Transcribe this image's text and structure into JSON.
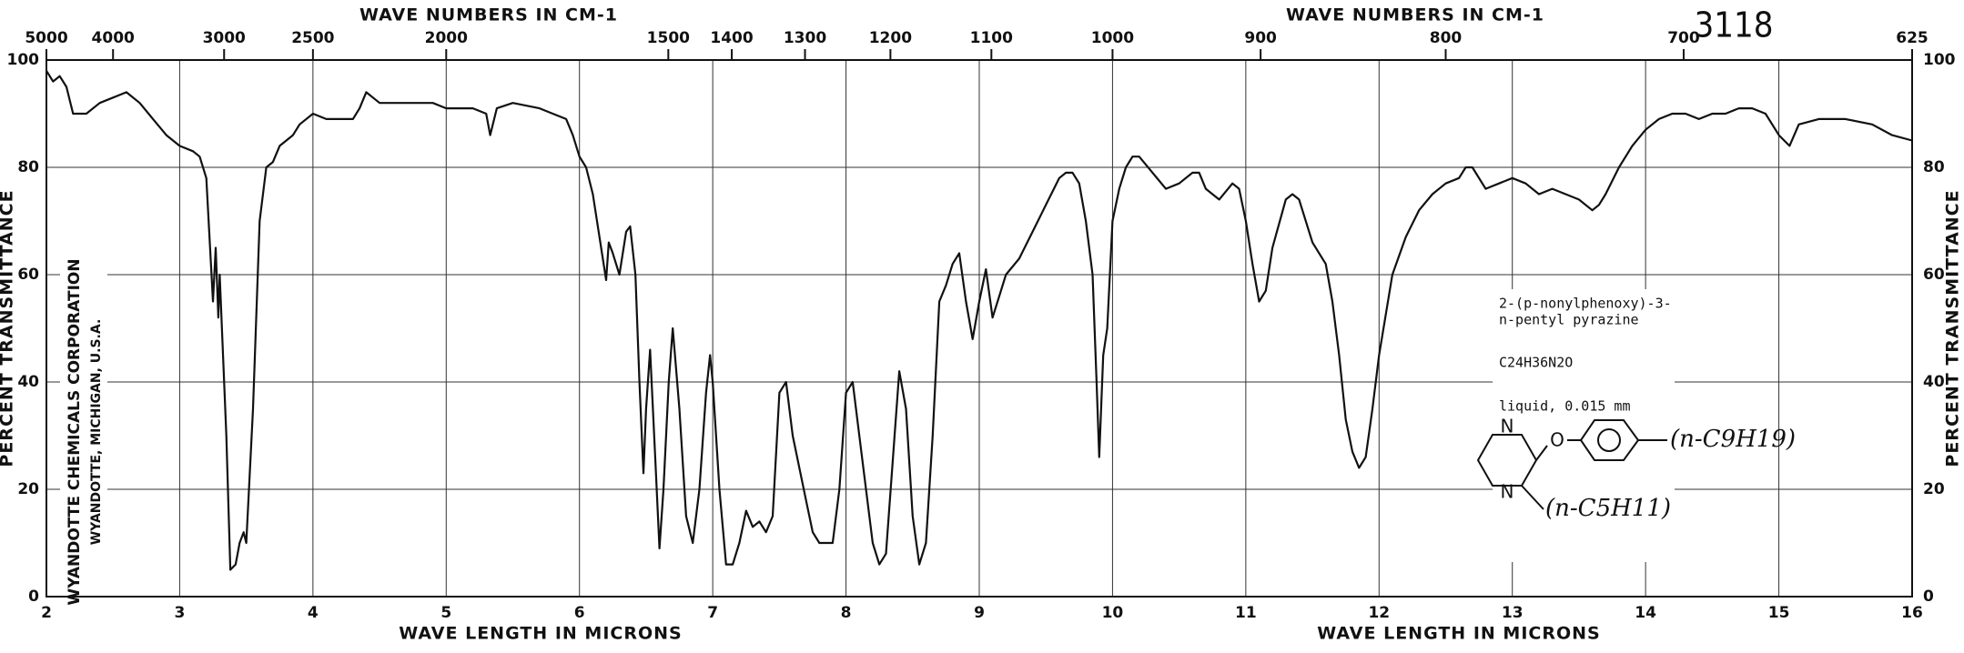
{
  "chart_data": {
    "type": "line",
    "title": "3118",
    "x_label": "WAVE LENGTH IN MICRONS",
    "x2_label": "WAVE NUMBERS IN CM-1",
    "y_label": "PERCENT TRANSMITTANCE",
    "color": "#111111",
    "grid": true,
    "xlim": [
      2,
      16
    ],
    "xticks": [
      2,
      3,
      4,
      5,
      6,
      7,
      8,
      9,
      10,
      11,
      12,
      13,
      14,
      15,
      16
    ],
    "x2ticks": [
      5000,
      4000,
      3000,
      2500,
      2000,
      1500,
      1400,
      1300,
      1200,
      1100,
      1000,
      900,
      800,
      700,
      625
    ],
    "ylim": [
      0,
      100
    ],
    "yticks": [
      0,
      20,
      40,
      60,
      80,
      100
    ],
    "x": [
      2.0,
      2.05,
      2.1,
      2.15,
      2.2,
      2.3,
      2.4,
      2.5,
      2.6,
      2.7,
      2.8,
      2.9,
      3.0,
      3.1,
      3.15,
      3.2,
      3.25,
      3.27,
      3.29,
      3.3,
      3.35,
      3.38,
      3.42,
      3.45,
      3.48,
      3.5,
      3.55,
      3.6,
      3.65,
      3.7,
      3.75,
      3.85,
      3.9,
      4.0,
      4.1,
      4.2,
      4.3,
      4.35,
      4.4,
      4.45,
      4.5,
      4.7,
      4.9,
      5.0,
      5.2,
      5.3,
      5.33,
      5.38,
      5.5,
      5.7,
      5.8,
      5.9,
      5.95,
      6.0,
      6.05,
      6.1,
      6.15,
      6.2,
      6.22,
      6.25,
      6.3,
      6.35,
      6.38,
      6.42,
      6.45,
      6.48,
      6.5,
      6.53,
      6.57,
      6.6,
      6.63,
      6.67,
      6.7,
      6.75,
      6.8,
      6.85,
      6.9,
      6.95,
      6.98,
      7.0,
      7.05,
      7.1,
      7.15,
      7.2,
      7.25,
      7.3,
      7.35,
      7.4,
      7.45,
      7.5,
      7.55,
      7.6,
      7.7,
      7.75,
      7.8,
      7.9,
      7.95,
      8.0,
      8.05,
      8.1,
      8.2,
      8.25,
      8.3,
      8.35,
      8.4,
      8.45,
      8.5,
      8.55,
      8.6,
      8.65,
      8.7,
      8.75,
      8.8,
      8.85,
      8.9,
      8.95,
      9.0,
      9.05,
      9.1,
      9.15,
      9.2,
      9.3,
      9.4,
      9.5,
      9.6,
      9.65,
      9.7,
      9.75,
      9.8,
      9.85,
      9.88,
      9.9,
      9.93,
      9.96,
      10.0,
      10.05,
      10.1,
      10.15,
      10.2,
      10.3,
      10.4,
      10.5,
      10.6,
      10.65,
      10.7,
      10.8,
      10.9,
      10.95,
      11.0,
      11.05,
      11.1,
      11.15,
      11.2,
      11.3,
      11.35,
      11.4,
      11.5,
      11.55,
      11.6,
      11.65,
      11.7,
      11.75,
      11.8,
      11.85,
      11.9,
      11.95,
      12.0,
      12.1,
      12.2,
      12.3,
      12.4,
      12.5,
      12.6,
      12.65,
      12.7,
      12.8,
      12.9,
      13.0,
      13.1,
      13.2,
      13.3,
      13.4,
      13.5,
      13.6,
      13.65,
      13.7,
      13.8,
      13.9,
      14.0,
      14.1,
      14.2,
      14.3,
      14.4,
      14.5,
      14.6,
      14.7,
      14.8,
      14.9,
      15.0,
      15.08,
      15.15,
      15.3,
      15.5,
      15.7,
      15.85,
      16.0
    ],
    "values": [
      98,
      96,
      97,
      95,
      90,
      90,
      92,
      93,
      94,
      92,
      89,
      86,
      84,
      83,
      82,
      78,
      55,
      65,
      52,
      60,
      30,
      5,
      6,
      10,
      12,
      10,
      35,
      70,
      80,
      81,
      84,
      86,
      88,
      90,
      89,
      89,
      89,
      91,
      94,
      93,
      92,
      92,
      92,
      91,
      91,
      90,
      86,
      91,
      92,
      91,
      90,
      89,
      86,
      82,
      80,
      75,
      67,
      59,
      66,
      64,
      60,
      68,
      69,
      60,
      40,
      23,
      35,
      46,
      25,
      9,
      20,
      40,
      50,
      35,
      15,
      10,
      20,
      38,
      45,
      40,
      20,
      6,
      6,
      10,
      16,
      13,
      14,
      12,
      15,
      38,
      40,
      30,
      18,
      12,
      10,
      10,
      20,
      38,
      40,
      30,
      10,
      6,
      8,
      25,
      42,
      35,
      15,
      6,
      10,
      30,
      55,
      58,
      62,
      64,
      55,
      48,
      55,
      61,
      52,
      56,
      60,
      63,
      68,
      73,
      78,
      79,
      79,
      77,
      70,
      60,
      40,
      26,
      45,
      50,
      70,
      76,
      80,
      82,
      82,
      79,
      76,
      77,
      79,
      79,
      76,
      74,
      77,
      76,
      70,
      62,
      55,
      57,
      65,
      74,
      75,
      74,
      66,
      64,
      62,
      55,
      45,
      33,
      27,
      24,
      26,
      35,
      45,
      60,
      67,
      72,
      75,
      77,
      78,
      80,
      80,
      76,
      77,
      78,
      77,
      75,
      76,
      75,
      74,
      72,
      73,
      75,
      80,
      84,
      87,
      89,
      90,
      90,
      89,
      90,
      90,
      91,
      91,
      90,
      86,
      84,
      88,
      89,
      89,
      88,
      86,
      85
    ],
    "company": "WYANDOTTE CHEMICALS CORPORATION",
    "location": "WYANDOTTE, MICHIGAN, U.S.A.",
    "compound": [
      "2-(p-nonylphenoxy)-3-",
      "n-pentyl pyrazine"
    ],
    "formula": "C24H36N2O",
    "sample": "liquid, 0.015 mm",
    "structure": {
      "atoms": [
        "N",
        "N",
        "O"
      ],
      "substituents": [
        "(n-C9H19)",
        "(n-C5H11)"
      ]
    }
  }
}
